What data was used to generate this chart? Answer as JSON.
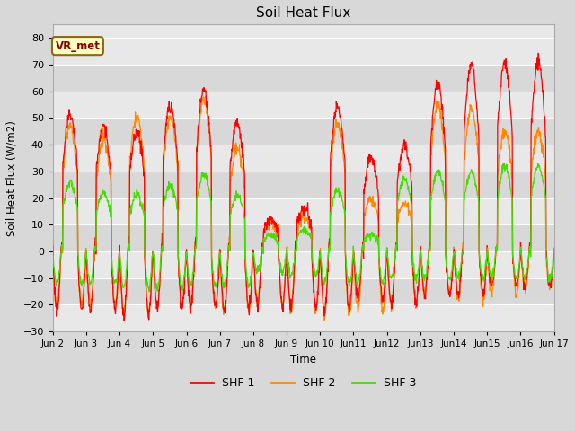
{
  "title": "Soil Heat Flux",
  "ylabel": "Soil Heat Flux (W/m2)",
  "xlabel": "Time",
  "ylim": [
    -30,
    85
  ],
  "yticks": [
    -30,
    -20,
    -10,
    0,
    10,
    20,
    30,
    40,
    50,
    60,
    70,
    80
  ],
  "colors": {
    "SHF 1": "#ff0000",
    "SHF 2": "#ff8800",
    "SHF 3": "#44dd00"
  },
  "legend_label": "VR_met",
  "bg_color": "#d8d8d8",
  "plot_bg_light": "#e8e8e8",
  "plot_bg_dark": "#d8d8d8",
  "grid_color": "#ffffff",
  "n_days": 15,
  "pts_per_day": 96,
  "x_tick_labels": [
    "Jun 2",
    "Jun 3",
    "Jun 4",
    "Jun 5",
    "Jun 6",
    "Jun 7",
    "Jun 8",
    "Jun 9",
    "Jun 10",
    "Jun11",
    "Jun12",
    "Jun13",
    "Jun14",
    "Jun15",
    "Jun16",
    "Jun 17"
  ],
  "peak_amps_shf1": [
    51,
    47,
    45,
    55,
    60,
    48,
    12,
    16,
    54,
    35,
    40,
    63,
    70,
    71,
    71
  ],
  "peak_amps_shf2": [
    47,
    42,
    51,
    50,
    57,
    39,
    11,
    13,
    48,
    20,
    18,
    55,
    54,
    45,
    45
  ],
  "peak_amps_shf3": [
    26,
    22,
    21,
    25,
    29,
    21,
    6,
    8,
    23,
    6,
    27,
    30,
    30,
    32,
    32
  ],
  "trough_shf1": [
    -22,
    -22,
    -24,
    -21,
    -21,
    -22,
    -20,
    -21,
    -22,
    -18,
    -19,
    -16,
    -16,
    -13,
    -13
  ],
  "trough_shf2": [
    -20,
    -20,
    -23,
    -20,
    -20,
    -22,
    -20,
    -22,
    -24,
    -22,
    -20,
    -15,
    -18,
    -16,
    -14
  ],
  "trough_shf3": [
    -12,
    -12,
    -14,
    -14,
    -13,
    -13,
    -8,
    -9,
    -12,
    -12,
    -10,
    -10,
    -10,
    -10,
    -10
  ]
}
